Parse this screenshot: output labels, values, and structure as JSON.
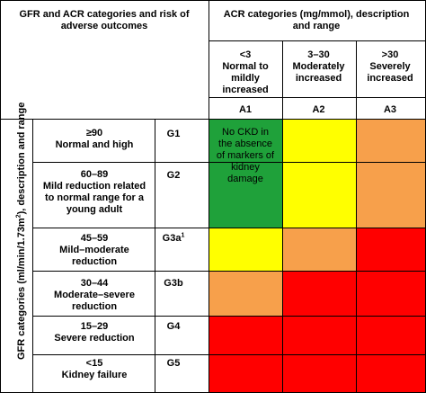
{
  "header": {
    "left_title": "GFR and ACR categories and risk of adverse outcomes",
    "right_title": "ACR categories (mg/mmol), description and range"
  },
  "acr_categories": [
    {
      "range": "<3",
      "description": "Normal to mildly increased",
      "code": "A1"
    },
    {
      "range": "3–30",
      "description": "Moderately increased",
      "code": "A2"
    },
    {
      "range": ">30",
      "description": "Severely increased",
      "code": "A3"
    }
  ],
  "gfr_axis_label_prefix": "GFR categories (ml/min/1.73m",
  "gfr_axis_label_sup": "2",
  "gfr_axis_label_suffix": "), description and range",
  "gfr_categories": [
    {
      "range": "≥90",
      "description": "Normal and high",
      "code": "G1"
    },
    {
      "range": "60–89",
      "description": "Mild reduction related to normal range for a young adult",
      "code": "G2"
    },
    {
      "range": "45–59",
      "description": "Mild–moderate reduction",
      "code": "G3a",
      "code_sup": "1"
    },
    {
      "range": "30–44",
      "description": "Moderate–severe reduction",
      "code": "G3b"
    },
    {
      "range": "15–29",
      "description": "Severe reduction",
      "code": "G4"
    },
    {
      "range": "<15",
      "description": "Kidney failure",
      "code": "G5"
    }
  ],
  "no_ckd_note": "No CKD in the absence of markers of kidney damage",
  "colors": {
    "green": "#1fa13a",
    "yellow": "#ffff00",
    "orange": "#f7a04b",
    "red": "#ff0000"
  }
}
